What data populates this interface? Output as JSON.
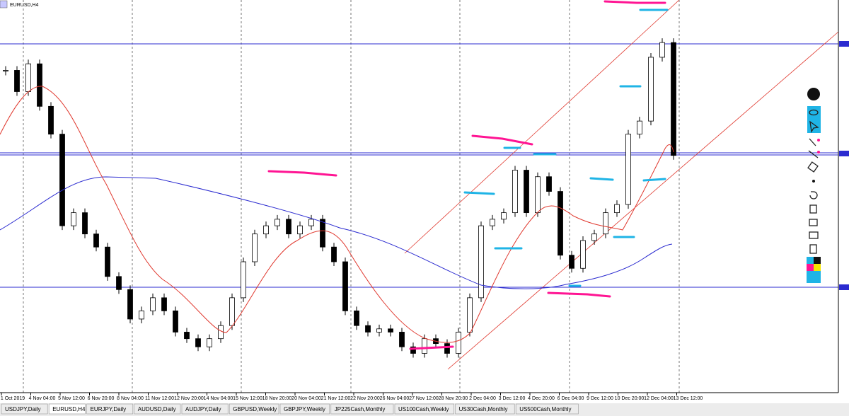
{
  "window": {
    "title": "EURUSD,H4"
  },
  "chart": {
    "ylim": [
      1.0975,
      1.1215
    ],
    "close": [
      1.1172,
      1.1159,
      1.1176,
      1.115,
      1.1133,
      1.1077,
      1.1085,
      1.1072,
      1.1064,
      1.1046,
      1.1038,
      1.102,
      1.1025,
      1.1033,
      1.1025,
      1.1012,
      1.1008,
      1.1003,
      1.1008,
      1.1016,
      1.1033,
      1.1055,
      1.1072,
      1.1077,
      1.1081,
      1.1072,
      1.1077,
      1.1081,
      1.1064,
      1.1055,
      1.1025,
      1.1016,
      1.1012,
      1.1014,
      1.1012,
      1.1003,
      1.0999,
      1.1008,
      1.1005,
      1.0999,
      1.1012,
      1.1033,
      1.1077,
      1.1081,
      1.1085,
      1.1111,
      1.1085,
      1.1107,
      1.1098,
      1.1059,
      1.1051,
      1.1068,
      1.1072,
      1.1085,
      1.109,
      1.1133,
      1.1141,
      1.118,
      1.1189,
      1.112
    ],
    "x_labels": [
      "1 Oct 2019",
      "4 Nov 04:00",
      "5 Nov 12:00",
      "6 Nov 20:00",
      "8 Nov 04:00",
      "11 Nov 12:00",
      "12 Nov 20:00",
      "14 Nov 04:00",
      "15 Nov 12:00",
      "18 Nov 20:00",
      "20 Nov 04:00",
      "21 Nov 12:00",
      "22 Nov 20:00",
      "26 Nov 04:00",
      "27 Nov 12:00",
      "28 Nov 20:00",
      "2 Dec 04:00",
      "3 Dec 12:00",
      "4 Dec 20:00",
      "6 Dec 04:00",
      "9 Dec 12:00",
      "10 Dec 20:00",
      "12 Dec 04:00",
      "13 Dec 12:00"
    ]
  },
  "tabs": [
    "USDJPY,Daily",
    "EURUSD,H4",
    "EURJPY,Daily",
    "AUDUSD,Daily",
    "AUDJPY,Daily",
    "GBPUSD,Weekly",
    "GBPJPY,Weekly",
    "JP225Cash,Monthly",
    "US100Cash,Weekly",
    "US30Cash,Monthly",
    "US500Cash,Monthly"
  ]
}
